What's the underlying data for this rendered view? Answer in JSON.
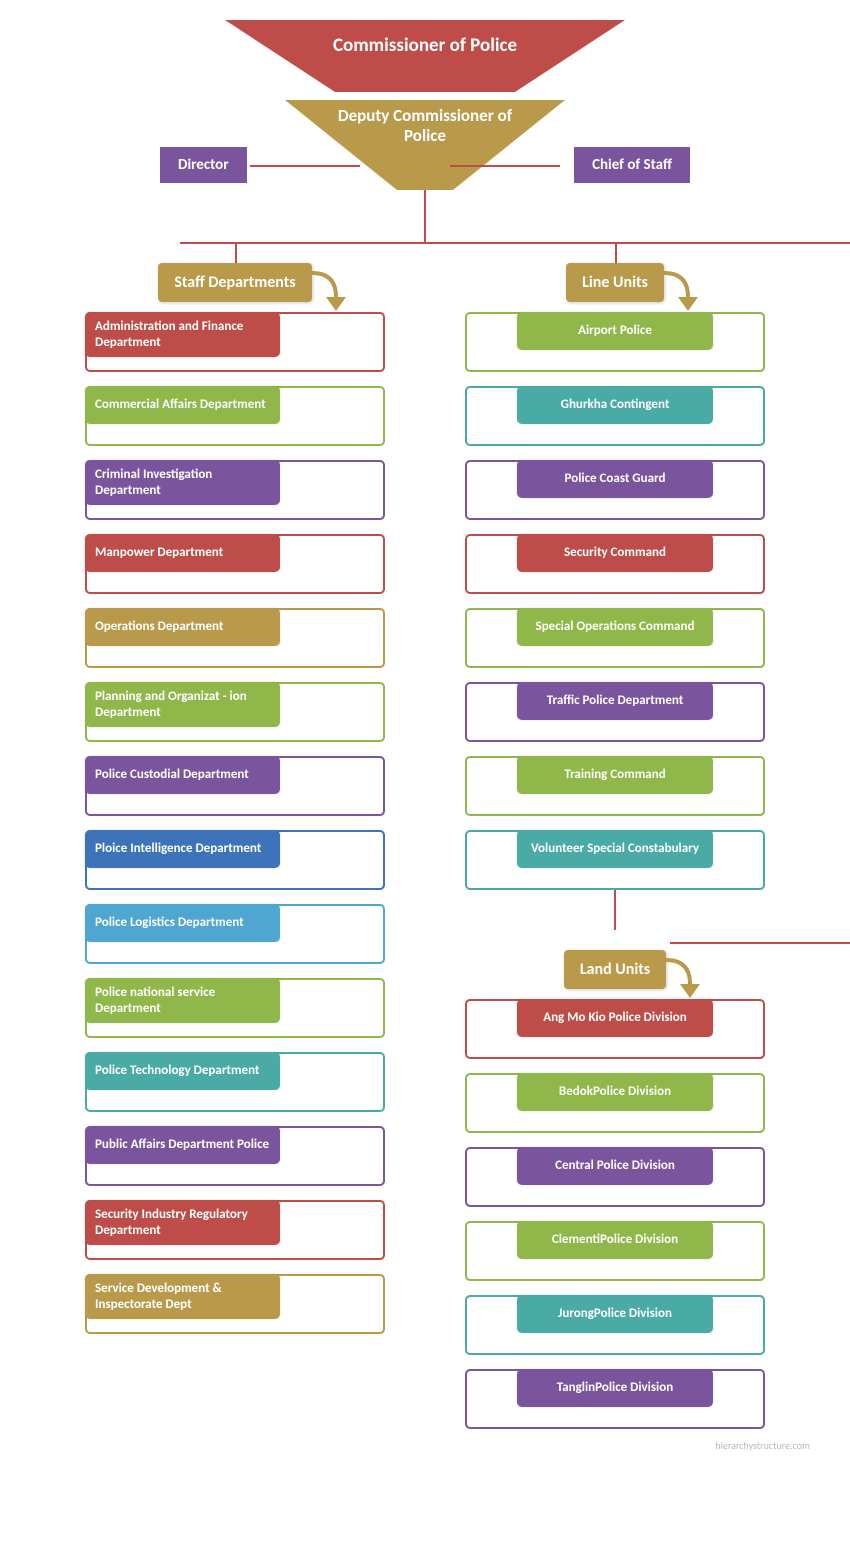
{
  "title": "Commissioner of Police",
  "deputy": "Deputy Commissioner of Police",
  "side_left": "Director",
  "side_right": "Chief of Staff",
  "watermark": "hierarchystructure.com",
  "colors": {
    "red": "#be4d49",
    "gold": "#b89a4a",
    "purple": "#7a559e",
    "green": "#8fb749",
    "teal": "#4aaaa5",
    "blue": "#3d74b9",
    "cyan": "#4fa6d1",
    "line": "#be4d49"
  },
  "sections": [
    {
      "header": "Staff Departments",
      "align": "left",
      "items": [
        {
          "label": "Administration and Finance Department",
          "color": "red"
        },
        {
          "label": "Commercial Affairs Department",
          "color": "green"
        },
        {
          "label": "Criminal Investigation Department",
          "color": "purple"
        },
        {
          "label": "Manpower Department",
          "color": "red"
        },
        {
          "label": "Operations Department",
          "color": "gold"
        },
        {
          "label": "Planning and Organizat - ion Department",
          "color": "green"
        },
        {
          "label": "Police Custodial Department",
          "color": "purple"
        },
        {
          "label": "Ploice Intelligence Department",
          "color": "blue"
        },
        {
          "label": "Police Logistics Department",
          "color": "cyan"
        },
        {
          "label": "Police national service Department",
          "color": "green"
        },
        {
          "label": "Police Technology Department",
          "color": "teal"
        },
        {
          "label": "Public Affairs Department Police",
          "color": "purple"
        },
        {
          "label": "Security Industry Regulatory Department",
          "color": "red"
        },
        {
          "label": "Service Development & Inspectorate Dept",
          "color": "gold"
        }
      ]
    },
    {
      "header": "Line Units",
      "align": "center",
      "items": [
        {
          "label": "Airport Police",
          "color": "green"
        },
        {
          "label": "Ghurkha Contingent",
          "color": "teal"
        },
        {
          "label": "Police Coast Guard",
          "color": "purple"
        },
        {
          "label": "Security Command",
          "color": "red"
        },
        {
          "label": "Special Operations Command",
          "color": "green"
        },
        {
          "label": "Traffic Police Department",
          "color": "purple"
        },
        {
          "label": "Training Command",
          "color": "green"
        },
        {
          "label": "Volunteer Special Constabulary",
          "color": "teal"
        }
      ]
    },
    {
      "header": "Land Units",
      "align": "center",
      "items": [
        {
          "label": "Ang Mo Kio Police Division",
          "color": "red"
        },
        {
          "label": "BedokPolice Division",
          "color": "green"
        },
        {
          "label": "Central Police Division",
          "color": "purple"
        },
        {
          "label": "ClementiPolice Division",
          "color": "green"
        },
        {
          "label": "JurongPolice Division",
          "color": "teal"
        },
        {
          "label": "TanglinPolice Division",
          "color": "purple"
        }
      ]
    }
  ]
}
